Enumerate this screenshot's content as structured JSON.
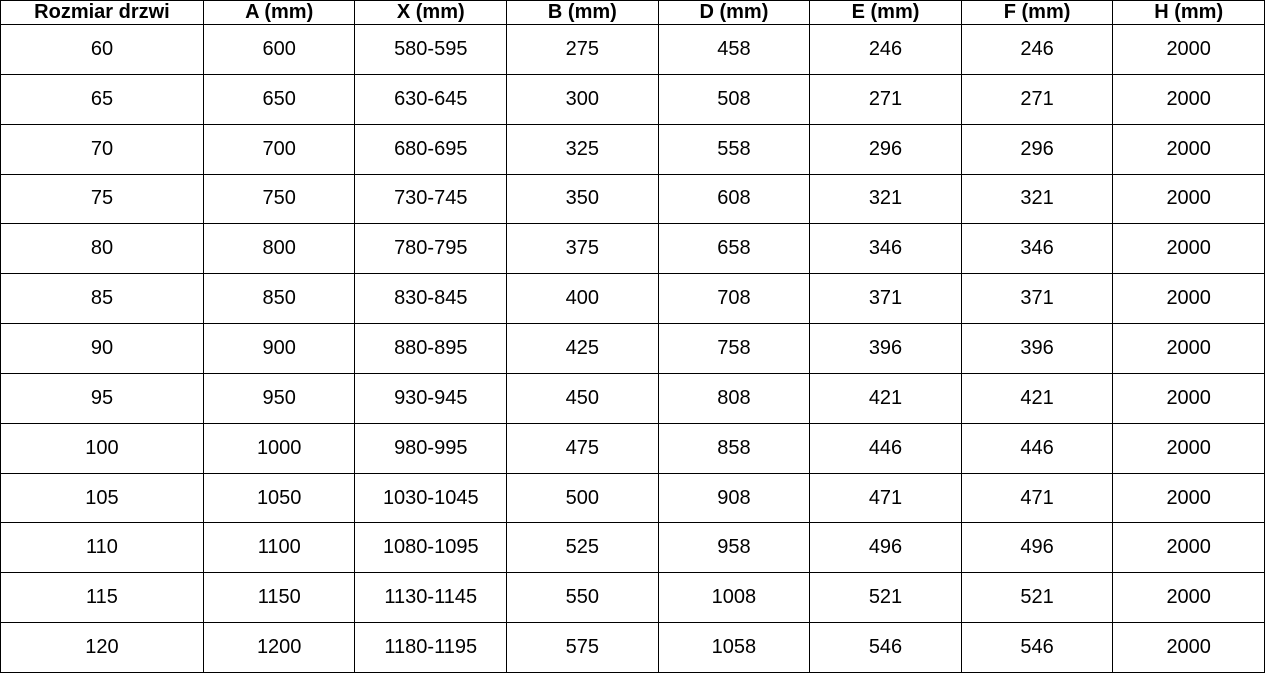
{
  "table": {
    "columns": [
      "Rozmiar drzwi",
      "A (mm)",
      "X (mm)",
      "B (mm)",
      "D (mm)",
      "E (mm)",
      "F (mm)",
      "H (mm)"
    ],
    "rows": [
      [
        "60",
        "600",
        "580-595",
        "275",
        "458",
        "246",
        "246",
        "2000"
      ],
      [
        "65",
        "650",
        "630-645",
        "300",
        "508",
        "271",
        "271",
        "2000"
      ],
      [
        "70",
        "700",
        "680-695",
        "325",
        "558",
        "296",
        "296",
        "2000"
      ],
      [
        "75",
        "750",
        "730-745",
        "350",
        "608",
        "321",
        "321",
        "2000"
      ],
      [
        "80",
        "800",
        "780-795",
        "375",
        "658",
        "346",
        "346",
        "2000"
      ],
      [
        "85",
        "850",
        "830-845",
        "400",
        "708",
        "371",
        "371",
        "2000"
      ],
      [
        "90",
        "900",
        "880-895",
        "425",
        "758",
        "396",
        "396",
        "2000"
      ],
      [
        "95",
        "950",
        "930-945",
        "450",
        "808",
        "421",
        "421",
        "2000"
      ],
      [
        "100",
        "1000",
        "980-995",
        "475",
        "858",
        "446",
        "446",
        "2000"
      ],
      [
        "105",
        "1050",
        "1030-1045",
        "500",
        "908",
        "471",
        "471",
        "2000"
      ],
      [
        "110",
        "1100",
        "1080-1095",
        "525",
        "958",
        "496",
        "496",
        "2000"
      ],
      [
        "115",
        "1150",
        "1130-1145",
        "550",
        "1008",
        "521",
        "521",
        "2000"
      ],
      [
        "120",
        "1200",
        "1180-1195",
        "575",
        "1058",
        "546",
        "546",
        "2000"
      ]
    ]
  },
  "chart_data": {
    "type": "table",
    "title": "",
    "columns": [
      "Rozmiar drzwi",
      "A (mm)",
      "X (mm)",
      "B (mm)",
      "D (mm)",
      "E (mm)",
      "F (mm)",
      "H (mm)"
    ],
    "rows": [
      [
        "60",
        "600",
        "580-595",
        "275",
        "458",
        "246",
        "246",
        "2000"
      ],
      [
        "65",
        "650",
        "630-645",
        "300",
        "508",
        "271",
        "271",
        "2000"
      ],
      [
        "70",
        "700",
        "680-695",
        "325",
        "558",
        "296",
        "296",
        "2000"
      ],
      [
        "75",
        "750",
        "730-745",
        "350",
        "608",
        "321",
        "321",
        "2000"
      ],
      [
        "80",
        "800",
        "780-795",
        "375",
        "658",
        "346",
        "346",
        "2000"
      ],
      [
        "85",
        "850",
        "830-845",
        "400",
        "708",
        "371",
        "371",
        "2000"
      ],
      [
        "90",
        "900",
        "880-895",
        "425",
        "758",
        "396",
        "396",
        "2000"
      ],
      [
        "95",
        "950",
        "930-945",
        "450",
        "808",
        "421",
        "421",
        "2000"
      ],
      [
        "100",
        "1000",
        "980-995",
        "475",
        "858",
        "446",
        "446",
        "2000"
      ],
      [
        "105",
        "1050",
        "1030-1045",
        "500",
        "908",
        "471",
        "471",
        "2000"
      ],
      [
        "110",
        "1100",
        "1080-1095",
        "525",
        "958",
        "496",
        "496",
        "2000"
      ],
      [
        "115",
        "1150",
        "1130-1145",
        "550",
        "1008",
        "521",
        "521",
        "2000"
      ],
      [
        "120",
        "1200",
        "1180-1195",
        "575",
        "1058",
        "546",
        "546",
        "2000"
      ]
    ],
    "layout_hints": {
      "grid": true,
      "header_bold": true,
      "text_align": "center"
    }
  },
  "colors": {
    "background": "#ffffff",
    "border": "#000000",
    "text": "#000000"
  }
}
